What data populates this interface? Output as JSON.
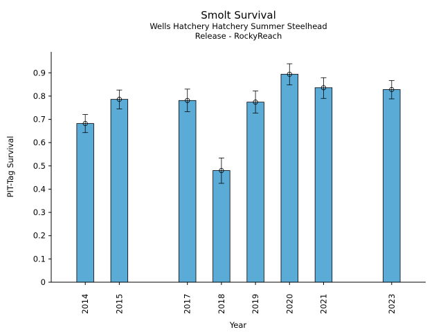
{
  "chart_data": {
    "type": "bar",
    "title": "Smolt Survival",
    "subtitle": [
      "Wells Hatchery Hatchery Summer Steelhead",
      "Release - RockyReach"
    ],
    "xlabel": "Year",
    "ylabel": "PIT-Tag Survival",
    "x": [
      2014,
      2015,
      2017,
      2018,
      2019,
      2020,
      2021,
      2023
    ],
    "categories": [
      "2014",
      "2015",
      "2017",
      "2018",
      "2019",
      "2020",
      "2021",
      "2023"
    ],
    "values": [
      0.682,
      0.786,
      0.781,
      0.48,
      0.774,
      0.894,
      0.836,
      0.828
    ],
    "error_low": [
      0.643,
      0.745,
      0.733,
      0.425,
      0.727,
      0.848,
      0.79,
      0.788
    ],
    "error_high": [
      0.721,
      0.826,
      0.83,
      0.534,
      0.822,
      0.939,
      0.879,
      0.867
    ],
    "ylim": [
      0,
      0.99
    ],
    "xlim": [
      2013.0,
      2024.0
    ],
    "yticks": [
      0,
      0.1,
      0.2,
      0.3,
      0.4,
      0.5,
      0.6,
      0.7,
      0.8,
      0.9
    ],
    "ytick_labels": [
      "0",
      "0.1",
      "0.2",
      "0.3",
      "0.4",
      "0.5",
      "0.6",
      "0.7",
      "0.8",
      "0.9"
    ],
    "grid": false,
    "legend": "none",
    "bar_color": "#5aabd6",
    "edge_color": "#000000"
  }
}
